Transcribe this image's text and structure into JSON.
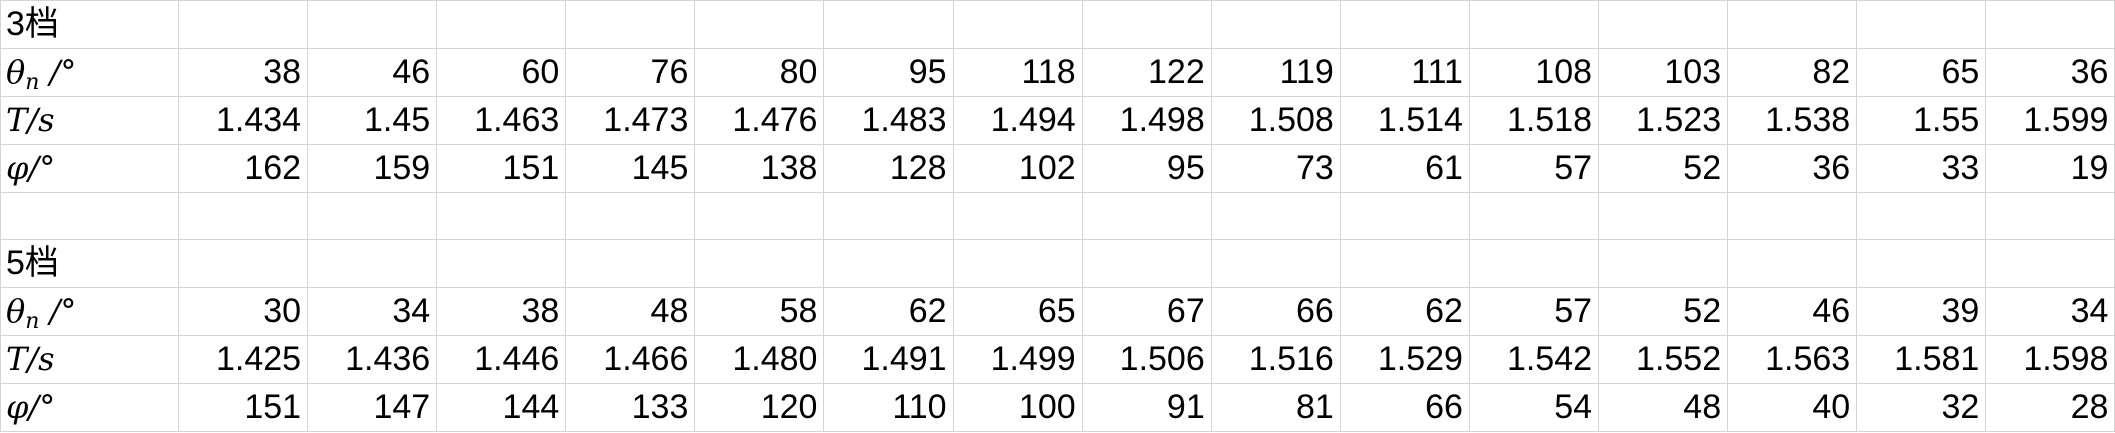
{
  "sections": [
    {
      "title": "3档",
      "rows": [
        {
          "sym": "θ",
          "sub": "n",
          "unit": " /°",
          "values": [
            "38",
            "46",
            "60",
            "76",
            "80",
            "95",
            "118",
            "122",
            "119",
            "111",
            "108",
            "103",
            "82",
            "65",
            "36"
          ]
        },
        {
          "sym": "T",
          "sub": "",
          "unit": "/s",
          "values": [
            "1.434",
            "1.45",
            "1.463",
            "1.473",
            "1.476",
            "1.483",
            "1.494",
            "1.498",
            "1.508",
            "1.514",
            "1.518",
            "1.523",
            "1.538",
            "1.55",
            "1.599"
          ]
        },
        {
          "sym": "φ",
          "sub": "",
          "unit": "/°",
          "values": [
            "162",
            "159",
            "151",
            "145",
            "138",
            "128",
            "102",
            "95",
            "73",
            "61",
            "57",
            "52",
            "36",
            "33",
            "19"
          ]
        }
      ]
    },
    {
      "title": "5档",
      "rows": [
        {
          "sym": "θ",
          "sub": "n",
          "unit": " /°",
          "values": [
            "30",
            "34",
            "38",
            "48",
            "58",
            "62",
            "65",
            "67",
            "66",
            "62",
            "57",
            "52",
            "46",
            "39",
            "34"
          ]
        },
        {
          "sym": "T",
          "sub": "",
          "unit": "/s",
          "values": [
            "1.425",
            "1.436",
            "1.446",
            "1.466",
            "1.480",
            "1.491",
            "1.499",
            "1.506",
            "1.516",
            "1.529",
            "1.542",
            "1.552",
            "1.563",
            "1.581",
            "1.598"
          ]
        },
        {
          "sym": "φ",
          "sub": "",
          "unit": "/°",
          "values": [
            "151",
            "147",
            "144",
            "133",
            "120",
            "110",
            "100",
            "91",
            "81",
            "66",
            "54",
            "48",
            "40",
            "32",
            "28"
          ]
        }
      ]
    }
  ]
}
